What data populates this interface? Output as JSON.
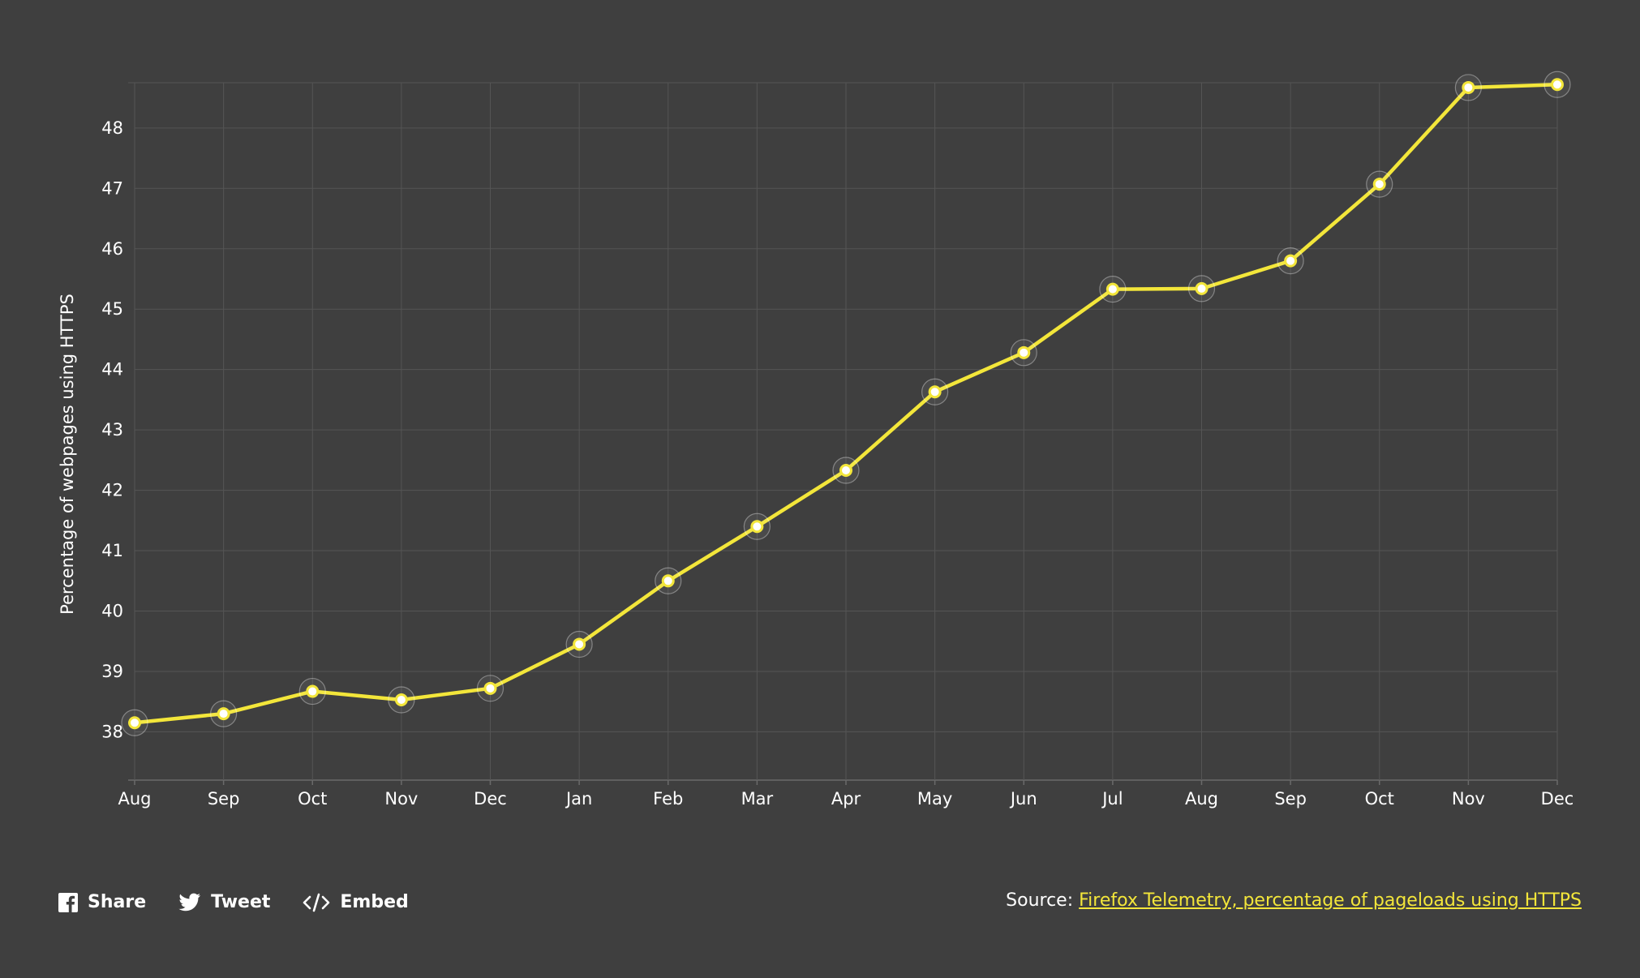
{
  "chart_data": {
    "type": "line",
    "categories": [
      "Aug",
      "Sep",
      "Oct",
      "Nov",
      "Dec",
      "Jan",
      "Feb",
      "Mar",
      "Apr",
      "May",
      "Jun",
      "Jul",
      "Aug",
      "Sep",
      "Oct",
      "Nov",
      "Dec"
    ],
    "series": [
      {
        "values": [
          38.15,
          38.3,
          38.67,
          38.53,
          38.72,
          39.45,
          40.5,
          41.4,
          42.33,
          43.63,
          44.28,
          45.33,
          45.34,
          45.8,
          47.07,
          48.67,
          48.72
        ]
      }
    ],
    "title": "",
    "xlabel": "",
    "ylabel": "Percentage of webpages using HTTPS",
    "ylim": [
      37.2,
      48.75
    ],
    "yticks": [
      38,
      39,
      40,
      41,
      42,
      43,
      44,
      45,
      46,
      47,
      48
    ],
    "grid": true,
    "colors": {
      "background": "#3f3f3f",
      "line": "#f3e63a",
      "grid": "#555555",
      "marker_fill": "#ffffff"
    }
  },
  "footer": {
    "share_label": "Share",
    "tweet_label": "Tweet",
    "embed_label": "Embed",
    "share_icon": "facebook-icon",
    "tweet_icon": "twitter-icon",
    "embed_icon": "code-icon",
    "source_prefix": "Source:",
    "source_link_text": "Firefox Telemetry, percentage of pageloads using HTTPS"
  }
}
